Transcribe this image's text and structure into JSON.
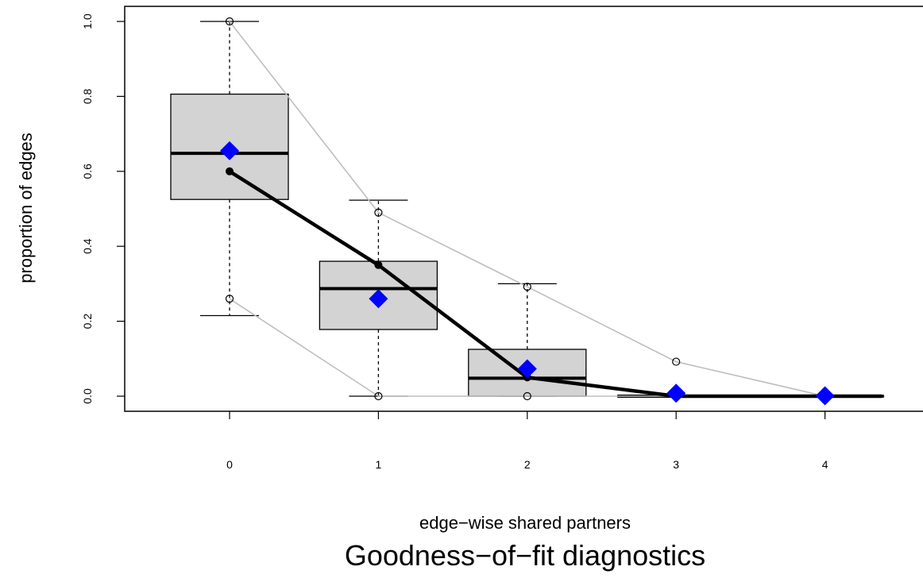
{
  "chart_data": {
    "type": "boxplot",
    "title": "Goodness−of−fit diagnostics",
    "xlabel": "edge−wise shared partners",
    "ylabel": "proportion of edges",
    "categories": [
      "0",
      "1",
      "2",
      "3",
      "4"
    ],
    "x_tick_labels": [
      "0",
      "1",
      "2",
      "3",
      "4"
    ],
    "y_tick_labels": [
      "0.0",
      "0.2",
      "0.4",
      "0.6",
      "0.8",
      "1.0"
    ],
    "ylim": [
      0,
      1
    ],
    "grid": false,
    "boxes": [
      {
        "category": "0",
        "lower_whisker": 0.215,
        "q1": 0.525,
        "median": 0.648,
        "q3": 0.806,
        "upper_whisker": 1.0
      },
      {
        "category": "1",
        "lower_whisker": 0.0,
        "q1": 0.178,
        "median": 0.287,
        "q3": 0.36,
        "upper_whisker": 0.523
      },
      {
        "category": "2",
        "lower_whisker": 0.0,
        "q1": 0.0,
        "median": 0.048,
        "q3": 0.125,
        "upper_whisker": 0.3
      },
      {
        "category": "3",
        "lower_whisker": 0.0,
        "q1": 0.0,
        "median": 0.0,
        "q3": 0.0,
        "upper_whisker": 0.0
      },
      {
        "category": "4",
        "lower_whisker": 0.0,
        "q1": 0.0,
        "median": 0.0,
        "q3": 0.0,
        "upper_whisker": 0.0
      }
    ],
    "simulated_mean": [
      0.655,
      0.26,
      0.073,
      0.008,
      0.001
    ],
    "observed": [
      0.6,
      0.35,
      0.05,
      0.0,
      0.0
    ],
    "observed_extends_to_x": 4.38,
    "range_upper": [
      1.0,
      0.49,
      0.292,
      0.092,
      0.0
    ],
    "range_lower": [
      0.26,
      0.0,
      0.0,
      0.0,
      0.0
    ],
    "colors": {
      "box_fill": "#d3d3d3",
      "observed_line": "#000000",
      "mean_marker": "#0000ff",
      "range_line": "#bebebe"
    }
  }
}
